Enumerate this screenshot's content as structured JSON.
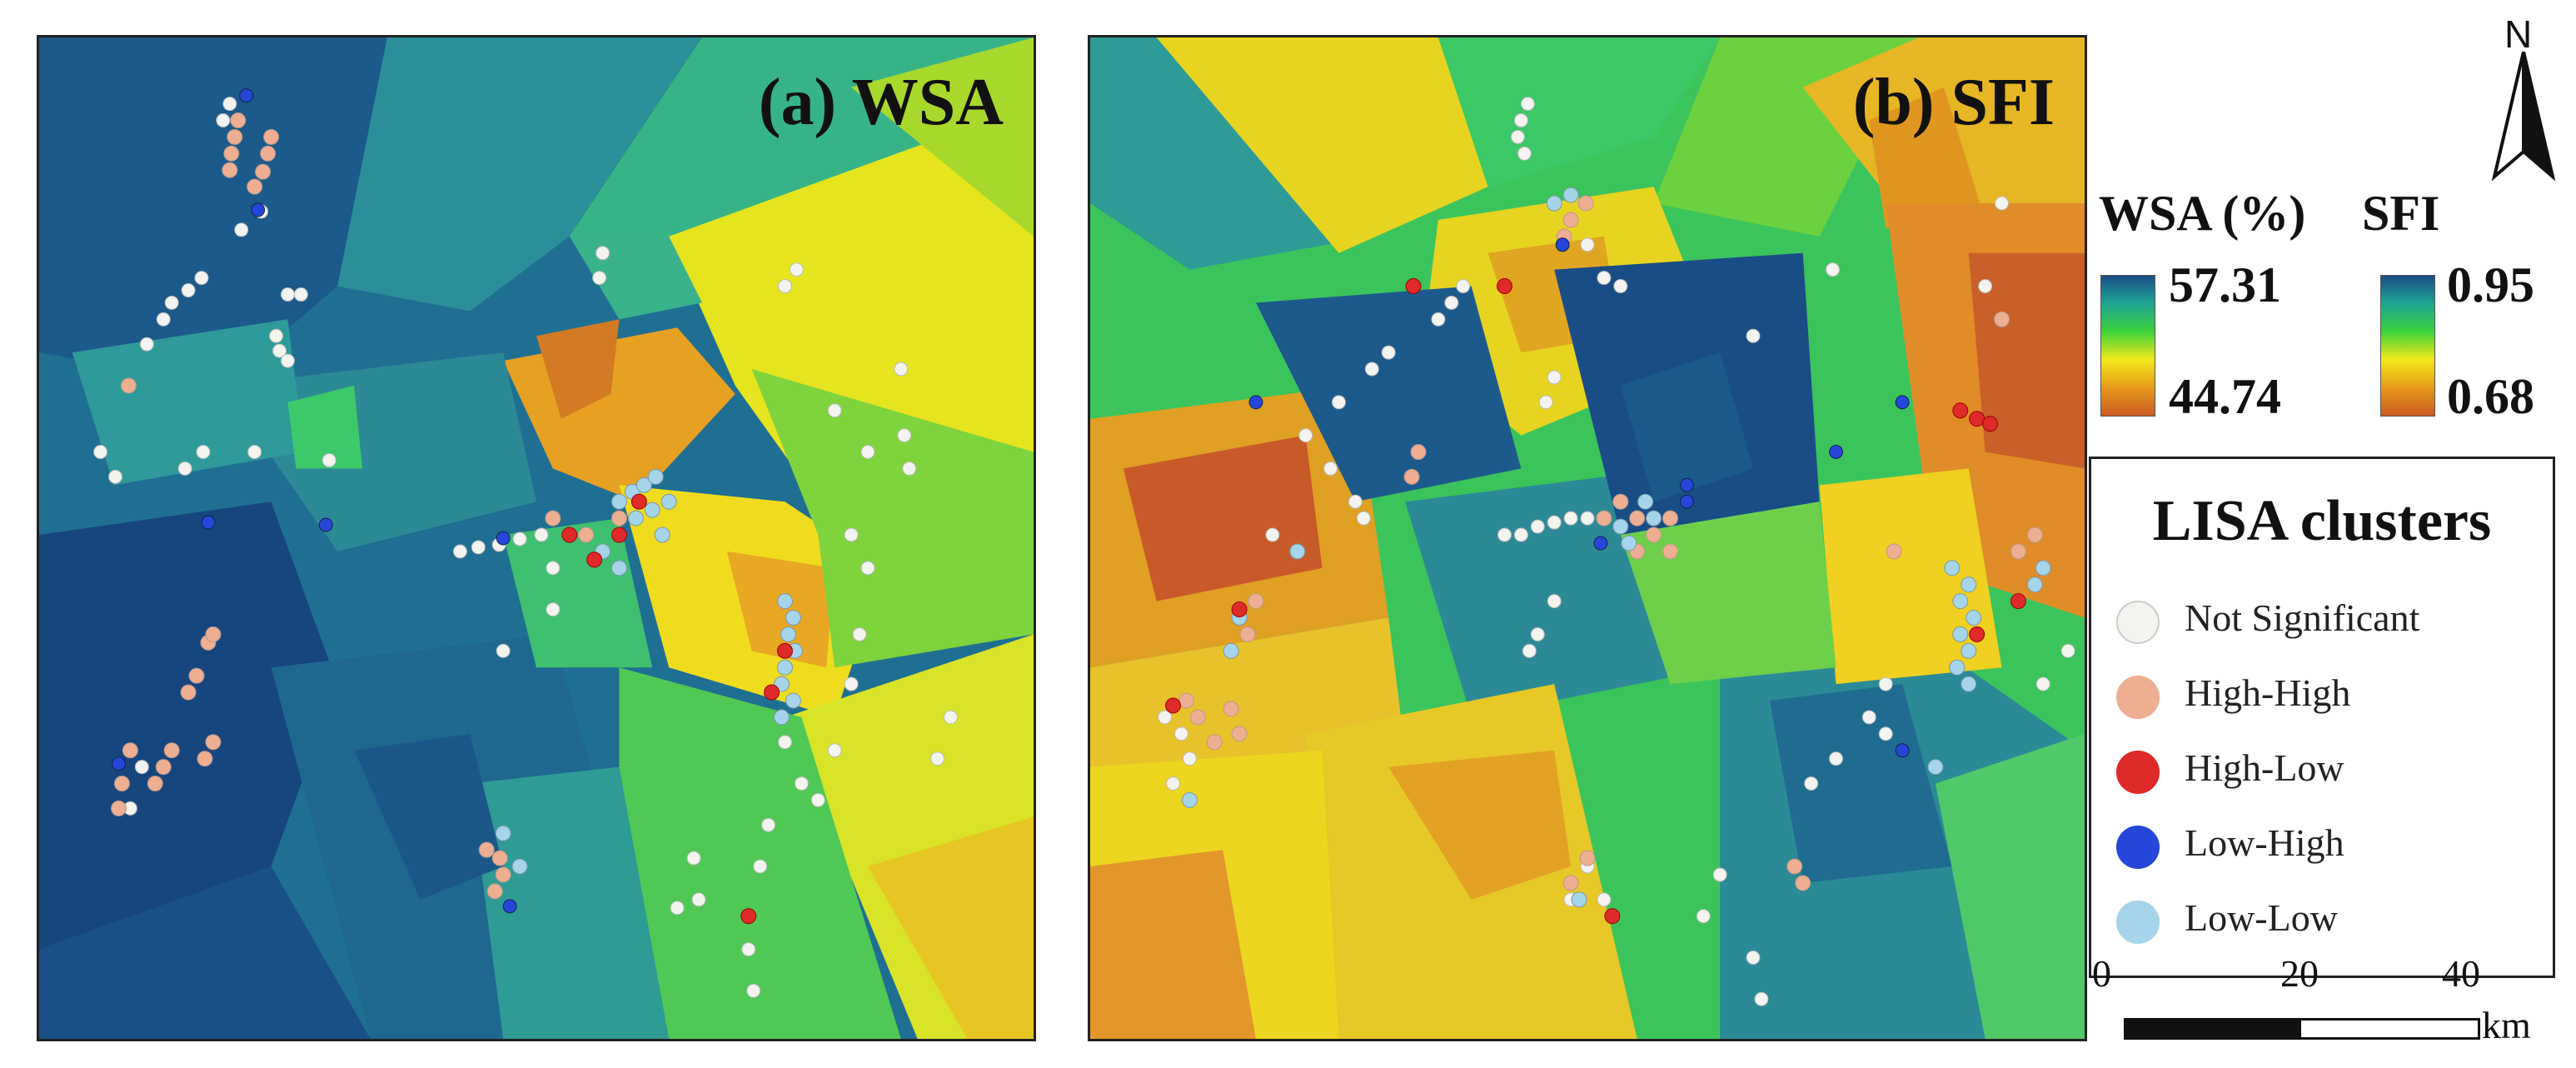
{
  "panels": {
    "a": {
      "title": "(a) WSA"
    },
    "b": {
      "title": "(b) SFI"
    }
  },
  "legend": {
    "wsa": {
      "title": "WSA (%)",
      "max": "57.31",
      "min": "44.74"
    },
    "sfi": {
      "title": "SFI",
      "max": "0.95",
      "min": "0.68"
    },
    "ramp_colors": [
      "#1a4d86",
      "#1fa592",
      "#3dd23a",
      "#f2e81a",
      "#e69a1a",
      "#cc5a26"
    ]
  },
  "north_arrow": {
    "label": "N"
  },
  "lisa": {
    "title": "LISA clusters",
    "items": [
      {
        "label": "Not Significant",
        "color": "#f3f3f0"
      },
      {
        "label": "High-High",
        "color": "#eeae92"
      },
      {
        "label": "High-Low",
        "color": "#df2a2a"
      },
      {
        "label": "Low-High",
        "color": "#2546d8"
      },
      {
        "label": "Low-Low",
        "color": "#a6d4ea"
      }
    ]
  },
  "scale_bar": {
    "ticks": [
      "0",
      "20",
      "40"
    ],
    "unit": "km"
  }
}
